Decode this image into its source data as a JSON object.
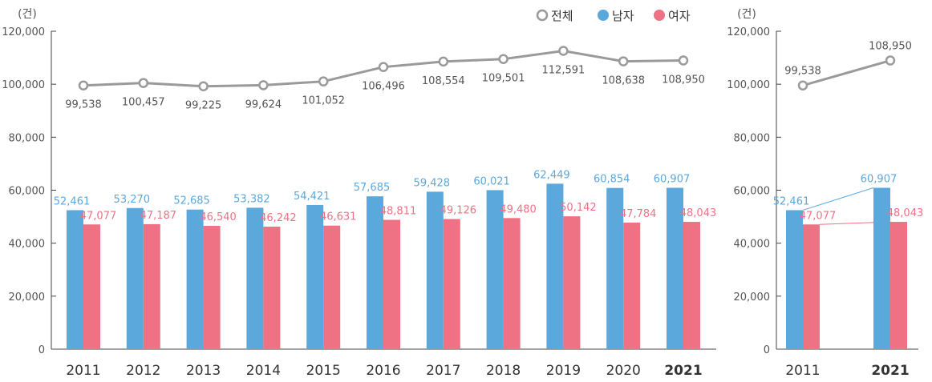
{
  "colors": {
    "male": "#5BA8DC",
    "female": "#EE7184",
    "total": "#9A9A9A",
    "axis": "#444444"
  },
  "legend": [
    {
      "key": "total",
      "label": "전체",
      "icon": "hollow-circle-icon"
    },
    {
      "key": "male",
      "label": "남자",
      "icon": "filled-circle-icon"
    },
    {
      "key": "female",
      "label": "여자",
      "icon": "filled-circle-icon"
    }
  ],
  "chart_data": [
    {
      "type": "bar",
      "unit": "(건)",
      "ylim": [
        0,
        120000
      ],
      "yticks": [
        0,
        20000,
        40000,
        60000,
        80000,
        100000,
        120000
      ],
      "ytick_labels": [
        "0",
        "20,000",
        "40,000",
        "60,000",
        "80,000",
        "100,000",
        "120,000"
      ],
      "categories": [
        "2011",
        "2012",
        "2013",
        "2014",
        "2015",
        "2016",
        "2017",
        "2018",
        "2019",
        "2020",
        "2021"
      ],
      "highlight_category": "2021",
      "series": [
        {
          "name": "남자",
          "key": "male",
          "kind": "bar",
          "values": [
            52461,
            53270,
            52685,
            53382,
            54421,
            57685,
            59428,
            60021,
            62449,
            60854,
            60907
          ],
          "labels": [
            "52,461",
            "53,270",
            "52,685",
            "53,382",
            "54,421",
            "57,685",
            "59,428",
            "60,021",
            "62,449",
            "60,854",
            "60,907"
          ]
        },
        {
          "name": "여자",
          "key": "female",
          "kind": "bar",
          "values": [
            47077,
            47187,
            46540,
            46242,
            46631,
            48811,
            49126,
            49480,
            50142,
            47784,
            48043
          ],
          "labels": [
            "47,077",
            "47,187",
            "46,540",
            "46,242",
            "46,631",
            "48,811",
            "49,126",
            "49,480",
            "50,142",
            "47,784",
            "48,043"
          ]
        },
        {
          "name": "전체",
          "key": "total",
          "kind": "line",
          "values": [
            99538,
            100457,
            99225,
            99624,
            101052,
            106496,
            108554,
            109501,
            112591,
            108638,
            108950
          ],
          "labels": [
            "99,538",
            "100,457",
            "99,225",
            "99,624",
            "101,052",
            "106,496",
            "108,554",
            "109,501",
            "112,591",
            "108,638",
            "108,950"
          ]
        }
      ]
    },
    {
      "type": "bar",
      "unit": "(건)",
      "ylim": [
        0,
        120000
      ],
      "yticks": [
        0,
        20000,
        40000,
        60000,
        80000,
        100000,
        120000
      ],
      "ytick_labels": [
        "0",
        "20,000",
        "40,000",
        "60,000",
        "80,000",
        "100,000",
        "120,000"
      ],
      "categories": [
        "2011",
        "2021"
      ],
      "highlight_category": "2021",
      "series": [
        {
          "name": "남자",
          "key": "male",
          "kind": "bar",
          "values": [
            52461,
            60907
          ],
          "labels": [
            "52,461",
            "60,907"
          ]
        },
        {
          "name": "여자",
          "key": "female",
          "kind": "bar",
          "values": [
            47077,
            48043
          ],
          "labels": [
            "47,077",
            "48,043"
          ]
        },
        {
          "name": "전체",
          "key": "total",
          "kind": "line",
          "values": [
            99538,
            108950
          ],
          "labels": [
            "99,538",
            "108,950"
          ]
        }
      ]
    }
  ]
}
